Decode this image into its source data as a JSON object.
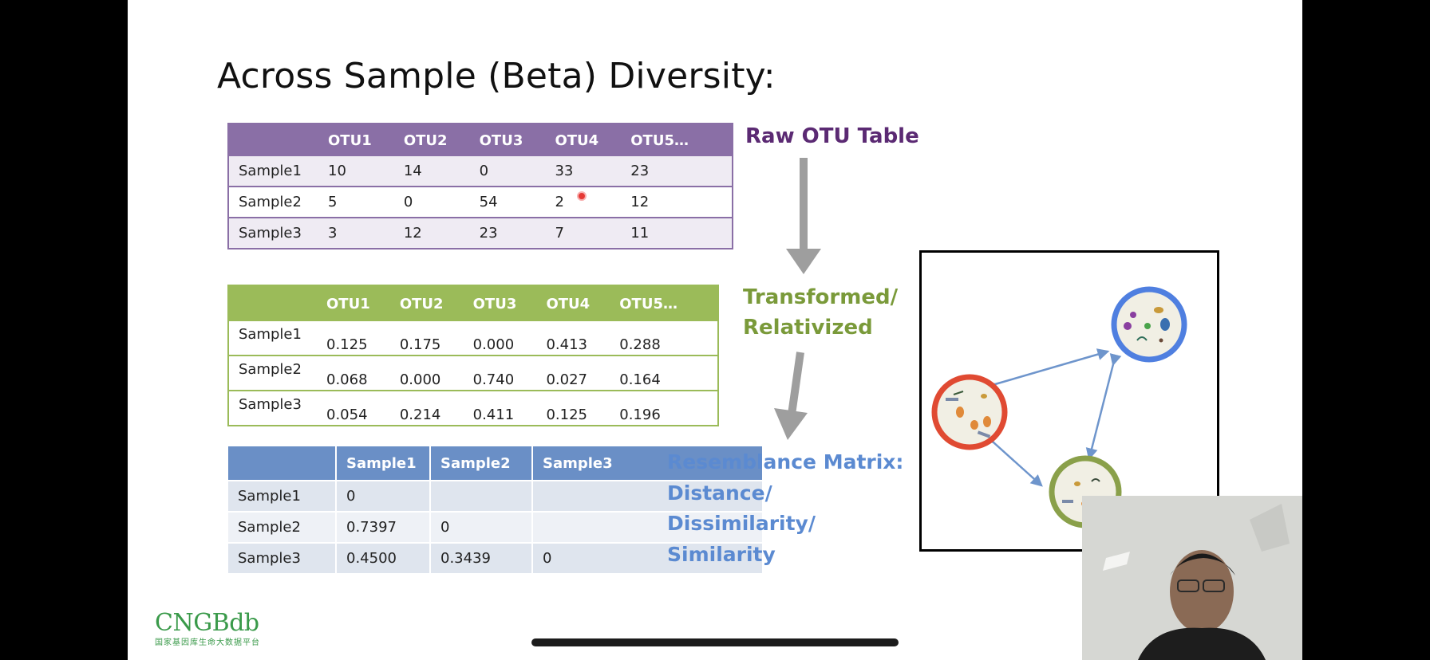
{
  "slide": {
    "title": "Across Sample (Beta) Diversity:",
    "raw_table": {
      "headers": [
        "",
        "OTU1",
        "OTU2",
        "OTU3",
        "OTU4",
        "OTU5…"
      ],
      "rows": [
        [
          "Sample1",
          "10",
          "14",
          "0",
          "33",
          "23"
        ],
        [
          "Sample2",
          "5",
          "0",
          "54",
          "2",
          "12"
        ],
        [
          "Sample3",
          "3",
          "12",
          "23",
          "7",
          "11"
        ]
      ],
      "label": "Raw OTU Table"
    },
    "transformed_table": {
      "headers": [
        "",
        "OTU1",
        "OTU2",
        "OTU3",
        "OTU4",
        "OTU5…"
      ],
      "rows": [
        [
          "Sample1",
          "0.125",
          "0.175",
          "0.000",
          "0.413",
          "0.288"
        ],
        [
          "Sample2",
          "0.068",
          "0.000",
          "0.740",
          "0.027",
          "0.164"
        ],
        [
          "Sample3",
          "0.054",
          "0.214",
          "0.411",
          "0.125",
          "0.196"
        ]
      ],
      "label_line1": "Transformed/",
      "label_line2": "Relativized"
    },
    "resemblance_table": {
      "headers": [
        "",
        "Sample1",
        "Sample2",
        "Sample3"
      ],
      "rows": [
        [
          "Sample1",
          "0",
          "",
          ""
        ],
        [
          "Sample2",
          "0.7397",
          "0",
          ""
        ],
        [
          "Sample3",
          "0.4500",
          "0.3439",
          "0"
        ]
      ],
      "label_lines": [
        "Resemblance Matrix:",
        "Distance/",
        "Dissimilarity/",
        "Similarity"
      ]
    },
    "logo": {
      "name": "CNGBdb",
      "subtitle": "国家基因库生命大数据平台"
    },
    "colors": {
      "raw": "#8a6fa6",
      "transformed": "#9bbb59",
      "resemblance": "#6a8fc6",
      "community_blue": "#4f7fe0",
      "community_red": "#e04a32",
      "community_green": "#8aa04a"
    }
  }
}
